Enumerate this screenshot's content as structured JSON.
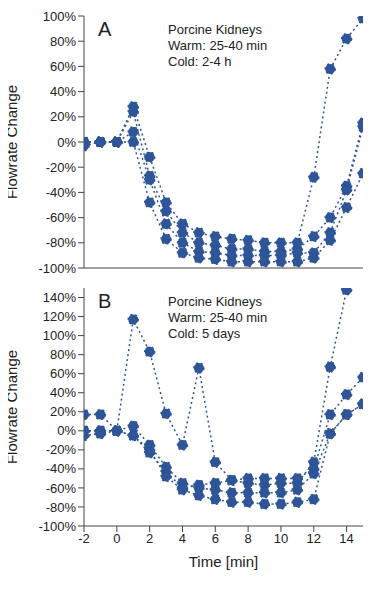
{
  "chart_data": [
    {
      "type": "line",
      "panel": "A",
      "annotations": [
        "Porcine Kidneys",
        "Warm: 25-40 min",
        "Cold: 2-4 h"
      ],
      "y_label": "Flowrate Change",
      "tick_labels": "y",
      "marker": "circle",
      "line_style": "dotted",
      "x": [
        -2,
        -1,
        0,
        1,
        2,
        3,
        4,
        5,
        6,
        7,
        8,
        9,
        10,
        11,
        12,
        13,
        14,
        15
      ],
      "series": [
        {
          "color": "#2E5597",
          "values": [
            0,
            0,
            0,
            28,
            -12,
            -48,
            -65,
            -72,
            -75,
            -77,
            -78,
            -80,
            -80,
            -80,
            -28,
            58,
            82,
            98
          ]
        },
        {
          "color": "#2E5597",
          "values": [
            0,
            0,
            0,
            24,
            -27,
            -55,
            -72,
            -80,
            -82,
            -85,
            -85,
            -87,
            -87,
            -85,
            -75,
            -60,
            -35,
            15
          ]
        },
        {
          "color": "#2E5597",
          "values": [
            -3,
            0,
            0,
            8,
            -30,
            -65,
            -80,
            -87,
            -88,
            -90,
            -90,
            -90,
            -90,
            -88,
            -88,
            -72,
            -38,
            12
          ]
        },
        {
          "color": "#2E5597",
          "values": [
            0,
            0,
            0,
            0,
            -48,
            -77,
            -88,
            -92,
            -93,
            -95,
            -95,
            -95,
            -95,
            -95,
            -92,
            -78,
            -52,
            -25
          ]
        }
      ],
      "xlim": [
        -2,
        15
      ],
      "xticks": [
        -2,
        0,
        2,
        4,
        6,
        8,
        10,
        12,
        14
      ],
      "ylim": [
        -100,
        100
      ],
      "yticks": [
        {
          "value": -100,
          "label": "-100%"
        },
        {
          "value": -80,
          "label": "-80%"
        },
        {
          "value": -60,
          "label": "-60%"
        },
        {
          "value": -40,
          "label": "-40%"
        },
        {
          "value": -20,
          "label": "-20%"
        },
        {
          "value": 0,
          "label": "0%"
        },
        {
          "value": 20,
          "label": "20%"
        },
        {
          "value": 40,
          "label": "40%"
        },
        {
          "value": 60,
          "label": "60%"
        },
        {
          "value": 80,
          "label": "80%"
        },
        {
          "value": 100,
          "label": "100%"
        }
      ]
    },
    {
      "type": "line",
      "panel": "B",
      "annotations": [
        "Porcine Kidneys",
        "Warm: 25-40 min",
        "Cold: 5 days"
      ],
      "y_label": "Flowrate Change",
      "x_label": "Time [min]",
      "marker": "circle",
      "line_style": "dotted",
      "x": [
        -2,
        -1,
        0,
        1,
        2,
        3,
        4,
        5,
        6,
        7,
        8,
        9,
        10,
        11,
        12,
        13,
        14,
        15
      ],
      "series": [
        {
          "color": "#2E5597",
          "values": [
            17,
            17,
            0,
            117,
            83,
            18,
            -15,
            66,
            -33,
            -52,
            -55,
            -57,
            -55,
            -55,
            -33,
            67,
            148,
            null
          ]
        },
        {
          "color": "#2E5597",
          "values": [
            0,
            0,
            0,
            -5,
            -23,
            -43,
            -60,
            -57,
            -55,
            -52,
            -50,
            -50,
            -50,
            -50,
            -40,
            17,
            38,
            56
          ]
        },
        {
          "color": "#2E5597",
          "values": [
            -5,
            -3,
            0,
            5,
            -15,
            -38,
            -55,
            -60,
            -62,
            -65,
            -65,
            -65,
            -65,
            -62,
            -45,
            -3,
            17,
            28
          ]
        },
        {
          "color": "#2E5597",
          "values": [
            0,
            0,
            0,
            -5,
            -20,
            -48,
            -62,
            -68,
            -72,
            -75,
            -75,
            -77,
            -77,
            -75,
            -72,
            -3,
            17,
            28
          ]
        }
      ],
      "xlim": [
        -2,
        15
      ],
      "xticks": [
        -2,
        0,
        2,
        4,
        6,
        8,
        10,
        12,
        14
      ],
      "ylim": [
        -100,
        150
      ],
      "yticks": [
        {
          "value": -100,
          "label": "-100%"
        },
        {
          "value": -80,
          "label": "-80%"
        },
        {
          "value": -60,
          "label": "-60%"
        },
        {
          "value": -40,
          "label": "-40%"
        },
        {
          "value": -20,
          "label": "-20%"
        },
        {
          "value": 0,
          "label": "0%"
        },
        {
          "value": 20,
          "label": "20%"
        },
        {
          "value": 40,
          "label": "40%"
        },
        {
          "value": 60,
          "label": "60%"
        },
        {
          "value": 80,
          "label": "80%"
        },
        {
          "value": 100,
          "label": "100%"
        },
        {
          "value": 120,
          "label": "120%"
        },
        {
          "value": 140,
          "label": "140%"
        }
      ]
    }
  ]
}
